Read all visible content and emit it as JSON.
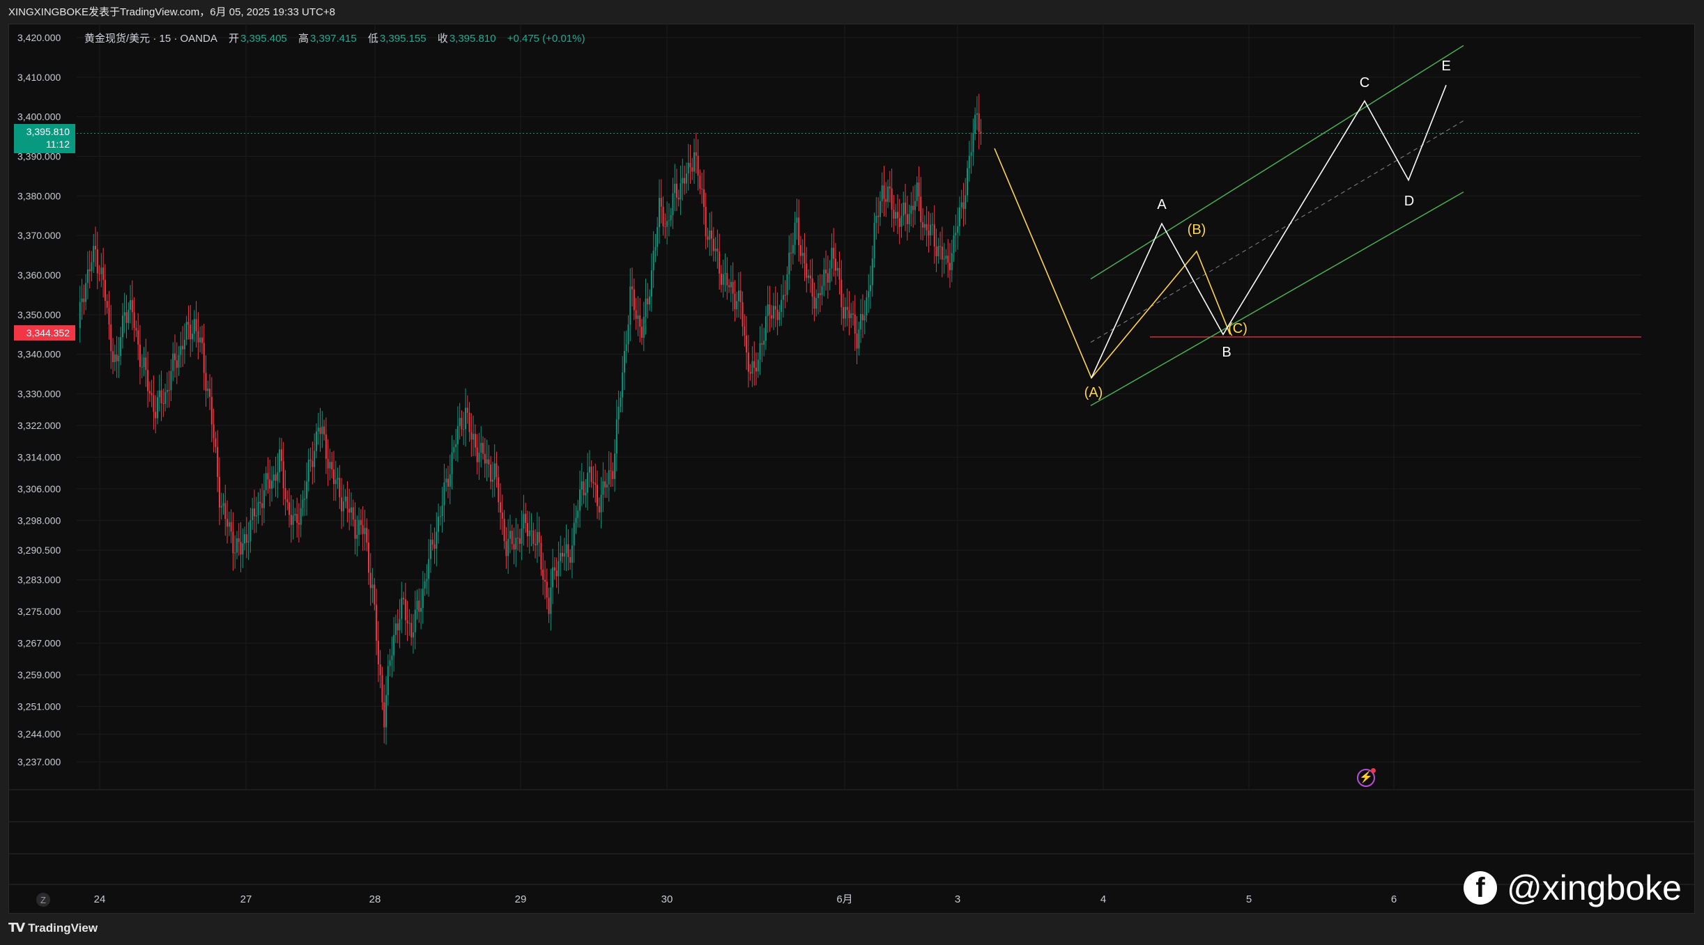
{
  "caption": "XINGXINGBOKE发表于TradingView.com，6月 05, 2025 19:33 UTC+8",
  "legend": {
    "symbol": "黄金现货/美元 · 15 · OANDA",
    "open_label": "开",
    "open": "3,395.405",
    "high_label": "高",
    "high": "3,397.415",
    "low_label": "低",
    "low": "3,395.155",
    "close_label": "收",
    "close": "3,395.810",
    "change": "+0.475 (+0.01%)"
  },
  "price_tags": {
    "current_price": "3,395.810",
    "countdown": "11:12",
    "level_price": "3,344.352"
  },
  "colors": {
    "up": "#089981",
    "down": "#f23645",
    "channel": "#4caf50",
    "wave_white": "#ffffff",
    "wave_yellow": "#ffd54f",
    "support_line": "#f23645"
  },
  "brand": {
    "name": "TradingView",
    "icon": "tradingview-logo-icon"
  },
  "watermark": {
    "text": "@xingboke",
    "icon": "facebook-icon"
  },
  "chart_data": {
    "type": "candlestick",
    "ylim": [
      3237,
      3420
    ],
    "yticks": [
      "3,420.000",
      "3,410.000",
      "3,400.000",
      "3,390.000",
      "3,380.000",
      "3,370.000",
      "3,360.000",
      "3,350.000",
      "3,340.000",
      "3,330.000",
      "3,322.000",
      "3,314.000",
      "3,306.000",
      "3,298.000",
      "3,290.500",
      "3,283.000",
      "3,275.000",
      "3,267.000",
      "3,259.000",
      "3,251.000",
      "3,244.000",
      "3,237.000"
    ],
    "xticks": [
      "24",
      "27",
      "28",
      "29",
      "30",
      "6月",
      "3",
      "4",
      "5",
      "6"
    ],
    "scale_button": "Z",
    "close_path": [
      [
        0,
        3345
      ],
      [
        2,
        3355
      ],
      [
        5,
        3360
      ],
      [
        9,
        3366
      ],
      [
        13,
        3358
      ],
      [
        16,
        3346
      ],
      [
        20,
        3336
      ],
      [
        24,
        3352
      ],
      [
        28,
        3350
      ],
      [
        32,
        3340
      ],
      [
        36,
        3332
      ],
      [
        40,
        3326
      ],
      [
        45,
        3330
      ],
      [
        50,
        3338
      ],
      [
        55,
        3344
      ],
      [
        60,
        3348
      ],
      [
        64,
        3340
      ],
      [
        68,
        3328
      ],
      [
        70,
        3318
      ],
      [
        73,
        3305
      ],
      [
        76,
        3298
      ],
      [
        80,
        3293
      ],
      [
        84,
        3290
      ],
      [
        88,
        3296
      ],
      [
        92,
        3300
      ],
      [
        96,
        3306
      ],
      [
        100,
        3308
      ],
      [
        104,
        3313
      ],
      [
        108,
        3302
      ],
      [
        112,
        3296
      ],
      [
        116,
        3303
      ],
      [
        120,
        3312
      ],
      [
        124,
        3322
      ],
      [
        128,
        3316
      ],
      [
        132,
        3308
      ],
      [
        136,
        3304
      ],
      [
        140,
        3300
      ],
      [
        144,
        3296
      ],
      [
        148,
        3295
      ],
      [
        152,
        3280
      ],
      [
        155,
        3262
      ],
      [
        158,
        3249
      ],
      [
        161,
        3262
      ],
      [
        164,
        3272
      ],
      [
        168,
        3276
      ],
      [
        172,
        3270
      ],
      [
        176,
        3276
      ],
      [
        180,
        3285
      ],
      [
        184,
        3294
      ],
      [
        188,
        3302
      ],
      [
        192,
        3312
      ],
      [
        196,
        3320
      ],
      [
        200,
        3326
      ],
      [
        203,
        3318
      ],
      [
        207,
        3316
      ],
      [
        211,
        3312
      ],
      [
        215,
        3310
      ],
      [
        218,
        3300
      ],
      [
        221,
        3292
      ],
      [
        225,
        3292
      ],
      [
        229,
        3296
      ],
      [
        233,
        3296
      ],
      [
        237,
        3292
      ],
      [
        240,
        3285
      ],
      [
        243,
        3276
      ],
      [
        246,
        3286
      ],
      [
        250,
        3290
      ],
      [
        253,
        3288
      ],
      [
        256,
        3296
      ],
      [
        260,
        3306
      ],
      [
        264,
        3310
      ],
      [
        268,
        3303
      ],
      [
        272,
        3306
      ],
      [
        276,
        3312
      ],
      [
        279,
        3325
      ],
      [
        282,
        3340
      ],
      [
        285,
        3355
      ],
      [
        288,
        3350
      ],
      [
        291,
        3347
      ],
      [
        294,
        3352
      ],
      [
        297,
        3366
      ],
      [
        300,
        3376
      ],
      [
        304,
        3373
      ],
      [
        308,
        3380
      ],
      [
        312,
        3384
      ],
      [
        315,
        3385
      ],
      [
        318,
        3392
      ],
      [
        321,
        3382
      ],
      [
        324,
        3373
      ],
      [
        327,
        3368
      ],
      [
        330,
        3364
      ],
      [
        334,
        3358
      ],
      [
        338,
        3356
      ],
      [
        342,
        3352
      ],
      [
        345,
        3340
      ],
      [
        349,
        3334
      ],
      [
        352,
        3342
      ],
      [
        355,
        3348
      ],
      [
        359,
        3352
      ],
      [
        363,
        3350
      ],
      [
        367,
        3365
      ],
      [
        371,
        3372
      ],
      [
        374,
        3365
      ],
      [
        378,
        3356
      ],
      [
        382,
        3354
      ],
      [
        386,
        3360
      ],
      [
        389,
        3365
      ],
      [
        392,
        3360
      ],
      [
        395,
        3352
      ],
      [
        397,
        3349
      ],
      [
        399,
        3350
      ],
      [
        402,
        3345
      ],
      [
        405,
        3348
      ],
      [
        408,
        3356
      ],
      [
        411,
        3370
      ],
      [
        415,
        3382
      ],
      [
        418,
        3380
      ],
      [
        421,
        3376
      ],
      [
        425,
        3374
      ],
      [
        429,
        3376
      ],
      [
        433,
        3380
      ],
      [
        437,
        3372
      ],
      [
        441,
        3370
      ],
      [
        445,
        3366
      ],
      [
        448,
        3362
      ],
      [
        452,
        3368
      ],
      [
        455,
        3375
      ],
      [
        459,
        3385
      ],
      [
        462,
        3395
      ],
      [
        464,
        3403
      ],
      [
        466,
        3396
      ]
    ],
    "last_price": 3395.81,
    "support_level": 3344.352,
    "wave_labels": [
      "(A)",
      "(B)",
      "(C)",
      "A",
      "B",
      "C",
      "D",
      "E"
    ],
    "waves": {
      "yellow_correction": [
        [
          "start",
          3392
        ],
        [
          "(A)",
          3334
        ],
        [
          "(B)",
          3366
        ],
        [
          "(C)",
          3345
        ]
      ],
      "white_impulse": [
        [
          "(A)",
          3334
        ],
        [
          "A",
          3373
        ],
        [
          "B",
          3345
        ],
        [
          "C",
          3404
        ],
        [
          "D",
          3384
        ],
        [
          "E",
          3408
        ]
      ]
    }
  }
}
